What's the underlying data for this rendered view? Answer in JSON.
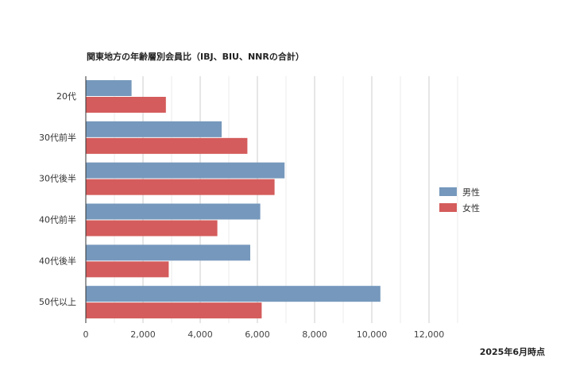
{
  "chart_data": {
    "type": "bar",
    "orientation": "horizontal",
    "title": "関東地方の年齢層別会員比（IBJ、BIU、NNRの合計）",
    "categories": [
      "20代",
      "30代前半",
      "30代後半",
      "40代前半",
      "40代後半",
      "50代以上"
    ],
    "series": [
      {
        "name": "男性",
        "color": "#7698bc",
        "values": [
          1600,
          4750,
          6950,
          6100,
          5750,
          10300
        ]
      },
      {
        "name": "女性",
        "color": "#d45c5c",
        "values": [
          2800,
          5650,
          6600,
          4600,
          2900,
          6150
        ]
      }
    ],
    "xlim": [
      0,
      12000
    ],
    "xticks": [
      0,
      2000,
      4000,
      6000,
      8000,
      10000,
      12000
    ],
    "xtick_labels": [
      "0",
      "2,000",
      "4,000",
      "6,000",
      "8,000",
      "10,000",
      "12,000"
    ],
    "grid": true,
    "legend_position": "right",
    "note": "2025年6月時点"
  }
}
